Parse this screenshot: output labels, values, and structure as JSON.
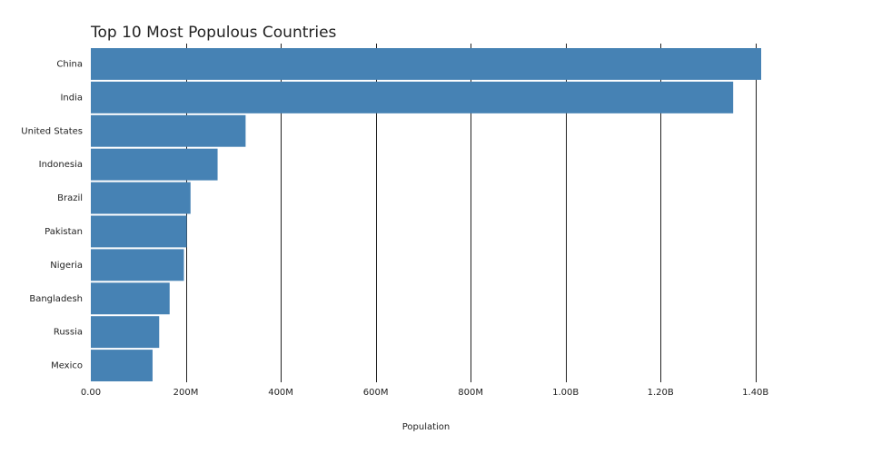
{
  "chart_data": {
    "type": "bar",
    "orientation": "horizontal",
    "title": "Top 10 Most Populous Countries",
    "xlabel": "Population",
    "ylabel": "",
    "categories": [
      "China",
      "India",
      "United States",
      "Indonesia",
      "Brazil",
      "Pakistan",
      "Nigeria",
      "Bangladesh",
      "Russia",
      "Mexico"
    ],
    "values": [
      1412000000,
      1353000000,
      326000000,
      267000000,
      210000000,
      202000000,
      196000000,
      166000000,
      144000000,
      130000000
    ],
    "xlim": [
      0,
      1412000000
    ],
    "x_ticks": [
      0,
      200000000,
      400000000,
      600000000,
      800000000,
      1000000000,
      1200000000,
      1400000000
    ],
    "x_tick_labels": [
      "0.00",
      "200M",
      "400M",
      "600M",
      "800M",
      "1.00B",
      "1.20B",
      "1.40B"
    ],
    "grid": {
      "x": true,
      "y": false
    },
    "bar_color": "#4682b4",
    "grid_color": "#222222",
    "legend": "none"
  }
}
